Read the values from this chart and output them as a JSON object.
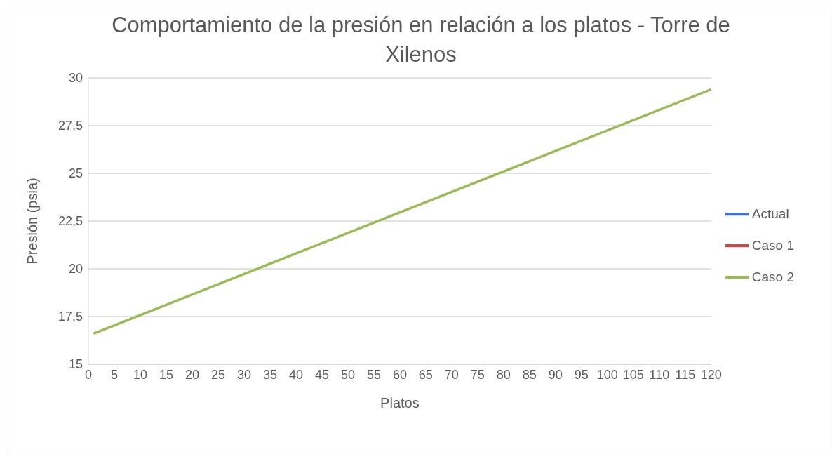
{
  "chart_data": {
    "type": "line",
    "title": "Comportamiento de la presión en relación a los platos - Torre de Xilenos",
    "xlabel": "Platos",
    "ylabel": "Presión (psia)",
    "x": [
      1,
      40,
      80,
      120
    ],
    "series": [
      {
        "name": "Actual",
        "color": "#4472c4",
        "values": [
          null,
          null,
          null,
          null
        ]
      },
      {
        "name": "Caso 1",
        "color": "#c0504d",
        "values": [
          null,
          null,
          null,
          null
        ]
      },
      {
        "name": "Caso 2",
        "color": "#9bbb59",
        "values": [
          16.6,
          20.8,
          25.1,
          29.4
        ]
      }
    ],
    "xlim": [
      0,
      120
    ],
    "xticks": [
      0,
      5,
      10,
      15,
      20,
      25,
      30,
      35,
      40,
      45,
      50,
      55,
      60,
      65,
      70,
      75,
      80,
      85,
      90,
      95,
      100,
      105,
      110,
      115,
      120
    ],
    "ylim": [
      15,
      30
    ],
    "yticks": [
      {
        "value": 15,
        "label": "15"
      },
      {
        "value": 17.5,
        "label": "17,5"
      },
      {
        "value": 20,
        "label": "20"
      },
      {
        "value": 22.5,
        "label": "22,5"
      },
      {
        "value": 25,
        "label": "25"
      },
      {
        "value": 27.5,
        "label": "27,5"
      },
      {
        "value": 30,
        "label": "30"
      }
    ],
    "grid": "y",
    "legend": "right",
    "marker": "none",
    "line_style": "solid"
  }
}
